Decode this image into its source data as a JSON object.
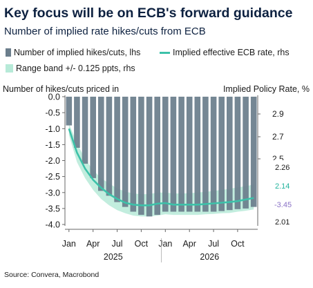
{
  "title": "Key focus will be on ECB's forward guidance",
  "subtitle": "Number of implied rate hikes/cuts from ECB",
  "legend": {
    "bars": "Number of implied hikes/cuts, lhs",
    "line": "Implied effective ECB rate, rhs",
    "band": "Range band +/- 0.125 ppts, rhs"
  },
  "source": "Source: Convera, Macrobond",
  "colors": {
    "bars": "#6b7e8c",
    "line": "#3cc1a9",
    "band": "#b7ead8",
    "last_value_label": "#8a72c6",
    "line_value_label": "#22b39c"
  },
  "chart_data": {
    "type": "bar",
    "title": "Key focus will be on ECB's forward guidance",
    "subtitle": "Number of implied rate hikes/cuts from ECB",
    "ylabel_left": "Number of hikes/cuts priced in",
    "ylabel_right": "Implied Policy Rate, %",
    "x_ticks": [
      "Jan",
      "Apr",
      "Jul",
      "Oct",
      "Jan",
      "Apr",
      "Jul",
      "Oct"
    ],
    "year_labels": [
      "2025",
      "2026"
    ],
    "left_axis": {
      "ylim": [
        -4.0,
        0.0
      ],
      "ticks": [
        "0.0",
        "-0.5",
        "-1.0",
        "-1.5",
        "-2.0",
        "-2.5",
        "-3.0",
        "-3.5",
        "-4.0"
      ]
    },
    "right_axis_upper_ticks": [
      "2.9",
      "2.7",
      "2.5"
    ],
    "right_axis_lower_ticks": [
      "2.26",
      "2.01"
    ],
    "right_axis_value_labels": [
      "2.14",
      "-3.45"
    ],
    "categories": [
      "Jan 2025",
      "Feb 2025",
      "Mar 2025",
      "Apr 2025",
      "May 2025",
      "Jun 2025",
      "Jul 2025",
      "Aug 2025",
      "Sep 2025",
      "Oct 2025",
      "Nov 2025",
      "Dec 2025",
      "Jan 2026",
      "Feb 2026",
      "Mar 2026",
      "Apr 2026",
      "May 2026",
      "Jun 2026",
      "Jul 2026",
      "Aug 2026",
      "Sep 2026",
      "Oct 2026",
      "Nov 2026",
      "Dec 2026"
    ],
    "series": [
      {
        "name": "Number of implied hikes/cuts, lhs",
        "type": "bar",
        "values": [
          -0.9,
          -1.6,
          -2.1,
          -2.55,
          -2.95,
          -3.1,
          -3.3,
          -3.45,
          -3.6,
          -3.7,
          -3.75,
          -3.7,
          -3.6,
          -3.6,
          -3.6,
          -3.6,
          -3.6,
          -3.6,
          -3.6,
          -3.58,
          -3.55,
          -3.52,
          -3.5,
          -3.45
        ]
      },
      {
        "name": "Implied effective ECB rate, rhs",
        "type": "line",
        "y_axis_scale": "lhs",
        "values": [
          -1.0,
          -1.75,
          -2.25,
          -2.6,
          -2.85,
          -3.05,
          -3.2,
          -3.32,
          -3.38,
          -3.4,
          -3.4,
          -3.35,
          -3.33,
          -3.38,
          -3.38,
          -3.38,
          -3.38,
          -3.36,
          -3.34,
          -3.32,
          -3.3,
          -3.27,
          -3.22,
          -3.17
        ]
      },
      {
        "name": "Range band +/- 0.125 ppts, rhs",
        "type": "area",
        "y_axis_scale": "lhs",
        "upper": [
          -0.85,
          -1.45,
          -1.95,
          -2.3,
          -2.55,
          -2.72,
          -2.87,
          -2.97,
          -3.03,
          -3.05,
          -3.05,
          -3.0,
          -3.0,
          -3.03,
          -3.03,
          -3.02,
          -3.0,
          -2.98,
          -2.95,
          -2.92,
          -2.88,
          -2.84,
          -2.8,
          -2.75
        ],
        "lower": [
          -1.2,
          -2.05,
          -2.55,
          -2.92,
          -3.2,
          -3.4,
          -3.55,
          -3.65,
          -3.72,
          -3.75,
          -3.75,
          -3.72,
          -3.68,
          -3.7,
          -3.7,
          -3.7,
          -3.7,
          -3.68,
          -3.67,
          -3.65,
          -3.64,
          -3.6,
          -3.57,
          -3.53
        ]
      }
    ],
    "grid": false,
    "legend_position": "top"
  }
}
